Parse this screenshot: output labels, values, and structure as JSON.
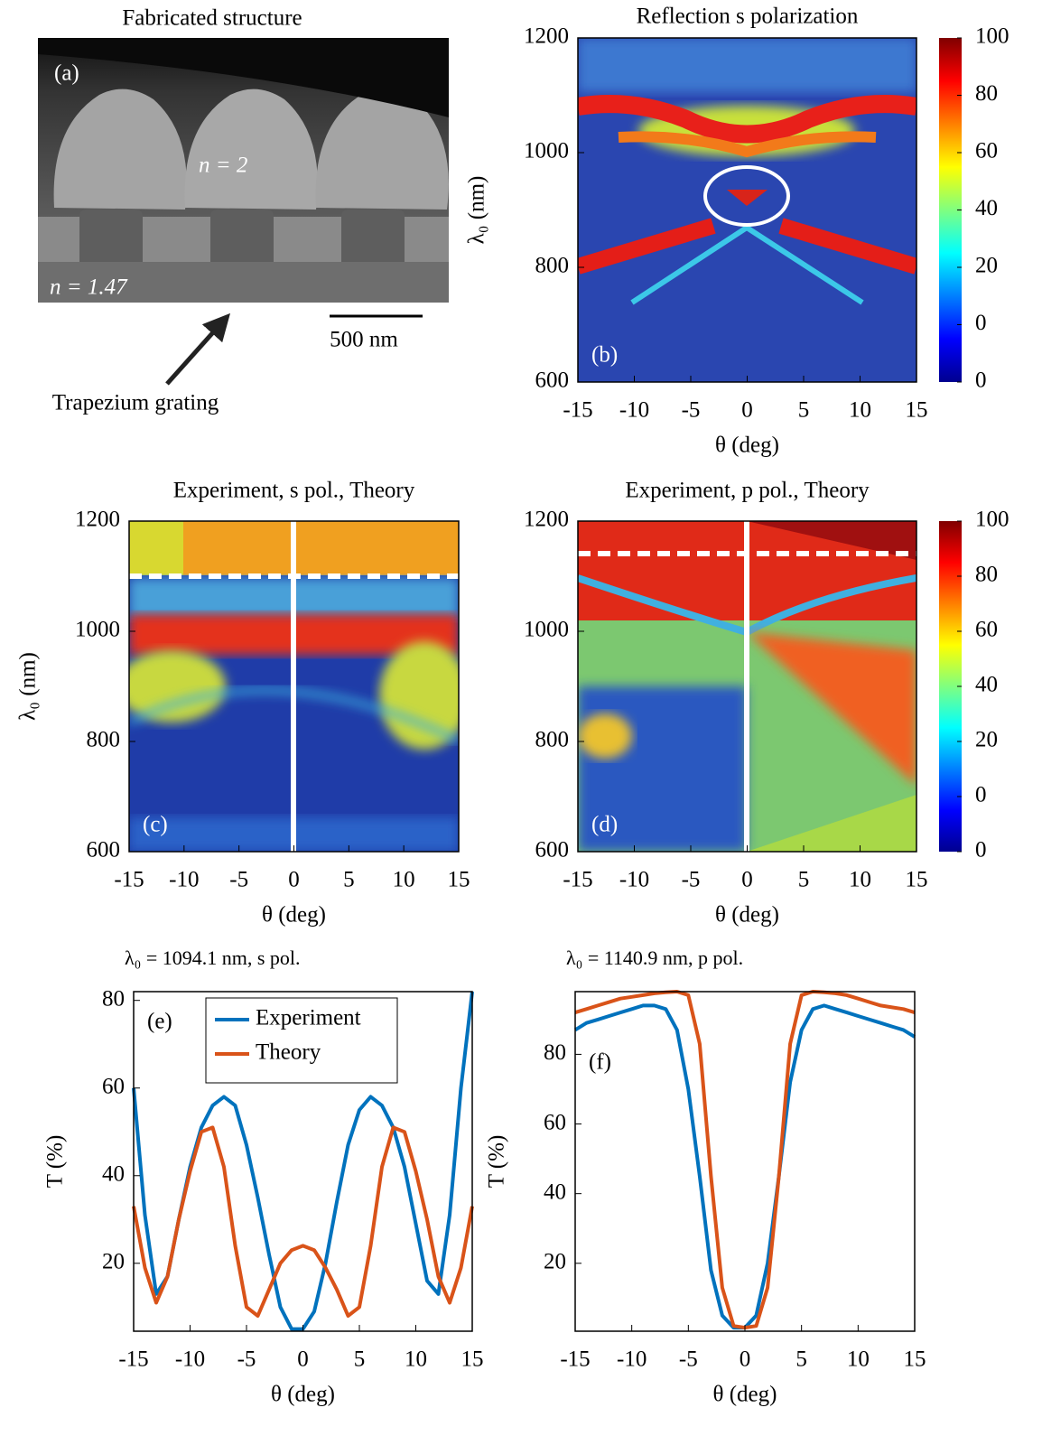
{
  "panel_a": {
    "title": "Fabricated structure",
    "panel_label": "(a)",
    "inner_label": "n = 2",
    "substrate_label": "n = 1.47",
    "scale_bar": "500 nm",
    "arrow_label": "Trapezium grating"
  },
  "chart_data": [
    {
      "type": "heatmap",
      "title": "Reflection s polarization",
      "panel_label": "(b)",
      "x_label": "θ (deg)",
      "y_label": "λ₀ (nm)",
      "xlim": [
        -15,
        15
      ],
      "xticks": [
        -15,
        -10,
        -5,
        0,
        5,
        10,
        15
      ],
      "ylim": [
        600,
        1200
      ],
      "yticks": [
        600,
        800,
        1000,
        1200
      ],
      "colorbar_lim": [
        -20,
        100
      ],
      "colorbar_ticks": [
        100,
        80,
        60,
        40,
        20,
        0,
        {
          "value": -20,
          "label": "0"
        }
      ]
    },
    {
      "type": "heatmap",
      "title": "Experiment, s pol., Theory",
      "panel_label": "(c)",
      "x_label": "θ (deg)",
      "y_label": "λ₀ (nm)",
      "xlim": [
        -15,
        15
      ],
      "xticks": [
        -15,
        -10,
        -5,
        0,
        5,
        10,
        15
      ],
      "ylim": [
        600,
        1200
      ],
      "yticks": [
        600,
        800,
        1000,
        1200
      ]
    },
    {
      "type": "heatmap",
      "title": "Experiment, p pol., Theory",
      "panel_label": "(d)",
      "x_label": "θ (deg)",
      "xlim": [
        -15,
        15
      ],
      "xticks": [
        -15,
        -10,
        -5,
        0,
        5,
        10,
        15
      ],
      "ylim": [
        600,
        1200
      ],
      "yticks": [
        600,
        800,
        1000,
        1200
      ],
      "colorbar_lim": [
        -20,
        100
      ],
      "colorbar_ticks": [
        100,
        80,
        60,
        40,
        20,
        0,
        {
          "value": -20,
          "label": "0"
        }
      ]
    },
    {
      "type": "line",
      "title": "λ₀ = 1094.1 nm, s pol.",
      "panel_label": "(e)",
      "x_label": "θ (deg)",
      "y_label": "T (%)",
      "xlim": [
        -15,
        15
      ],
      "xticks": [
        -15,
        -10,
        -5,
        0,
        5,
        10,
        15
      ],
      "ylim": [
        4.5,
        82
      ],
      "yticks": [
        20,
        40,
        60,
        80
      ],
      "legend": "upper-center",
      "x": [
        -15,
        -14,
        -13,
        -12,
        -11,
        -10,
        -9,
        -8,
        -7,
        -6,
        -5,
        -4,
        -3,
        -2,
        -1,
        0,
        1,
        2,
        3,
        4,
        5,
        6,
        7,
        8,
        9,
        10,
        11,
        12,
        13,
        14,
        15
      ],
      "series": [
        {
          "name": "Experiment",
          "color": "#0072bd",
          "values": [
            60,
            31,
            13,
            17,
            30,
            42,
            51,
            56,
            58,
            56,
            47,
            35,
            22,
            10,
            5,
            5,
            9,
            20,
            34,
            47,
            55,
            58,
            56,
            51,
            42,
            29,
            16,
            13,
            31,
            60,
            82
          ]
        },
        {
          "name": "Theory",
          "color": "#d95319",
          "values": [
            33,
            19,
            11,
            17,
            30,
            41,
            50,
            51,
            42,
            24,
            10,
            8,
            14,
            20,
            23,
            24,
            23,
            19,
            14,
            8,
            10,
            24,
            42,
            51,
            50,
            41,
            30,
            17,
            11,
            19,
            33
          ]
        }
      ]
    },
    {
      "type": "line",
      "title": "λ₀ = 1140.9 nm, p pol.",
      "panel_label": "(f)",
      "x_label": "θ (deg)",
      "y_label": "T (%)",
      "xlim": [
        -15,
        15
      ],
      "xticks": [
        -15,
        -10,
        -5,
        0,
        5,
        10,
        15
      ],
      "ylim": [
        0.5,
        98
      ],
      "yticks": [
        20,
        40,
        60,
        80
      ],
      "x": [
        -15,
        -14,
        -13,
        -12,
        -11,
        -10,
        -9,
        -8,
        -7,
        -6,
        -5,
        -4,
        -3,
        -2,
        -1,
        0,
        1,
        2,
        3,
        4,
        5,
        6,
        7,
        8,
        9,
        10,
        11,
        12,
        13,
        14,
        15
      ],
      "series": [
        {
          "color": "#0072bd",
          "values": [
            87,
            89,
            90,
            91,
            92,
            93,
            94,
            94,
            93,
            87,
            70,
            45,
            18,
            5,
            1.5,
            1.5,
            5,
            20,
            45,
            72,
            87,
            93,
            94,
            93,
            92,
            91,
            90,
            89,
            88,
            87,
            85
          ]
        },
        {
          "color": "#d95319",
          "values": [
            92,
            93,
            94,
            95,
            96,
            96.5,
            97,
            97.5,
            97.8,
            98,
            97,
            83,
            45,
            13,
            2,
            1.5,
            2,
            13,
            45,
            83,
            97,
            98,
            97.8,
            97.5,
            97,
            96,
            95,
            94,
            93.5,
            93,
            92
          ]
        }
      ]
    }
  ]
}
